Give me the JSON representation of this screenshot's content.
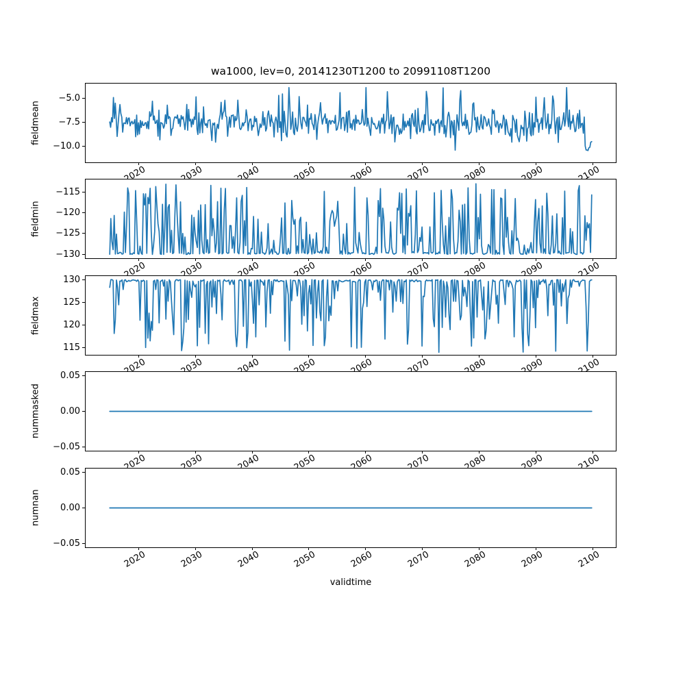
{
  "figure": {
    "title": "wa1000, lev=0, 20141230T1200 to 20991108T1200",
    "xlabel": "validtime",
    "line_color": "#1f77b4",
    "axes_color": "#000000",
    "background": "#ffffff"
  },
  "x_axis": {
    "label": "validtime",
    "xlim": [
      2010.75,
      2104.1
    ],
    "data_x_start": 2014.99,
    "data_x_end": 2099.85,
    "tick_values": [
      2020,
      2030,
      2040,
      2050,
      2060,
      2070,
      2080,
      2090,
      2100
    ],
    "tick_labels": [
      "2020",
      "2030",
      "2040",
      "2050",
      "2060",
      "2070",
      "2080",
      "2090",
      "2100"
    ],
    "tick_rotation_deg": 30
  },
  "chart_data": [
    {
      "type": "line",
      "name": "fieldmean",
      "ylabel": "fieldmean",
      "ylim": [
        -11.71,
        -3.43
      ],
      "yticks": [
        {
          "v": -5.0,
          "label": "−5.0"
        },
        {
          "v": -7.5,
          "label": "−7.5"
        },
        {
          "v": -10.0,
          "label": "−10.0"
        }
      ],
      "series_summary": {
        "description": "dense noisy oscillation",
        "approx_mean": -7.5,
        "typical_range": [
          -9.0,
          -6.3
        ],
        "max": -3.9,
        "min": -11.3,
        "end_value": -10.3
      },
      "synth": {
        "kind": "noisy",
        "seed": 42,
        "n": 520,
        "base": -7.55,
        "amp": 1.05,
        "spike_up_p": 0.085,
        "spike_up_min": 1.2,
        "spike_up_max": 3.3,
        "spike_dn_p": 0.07,
        "spike_dn_min": 0.5,
        "spike_dn_max": 1.8,
        "sag_from": 2083,
        "sag_to": 2090,
        "sag": 1.3,
        "tail_from": 2098.6,
        "tail_base": -10.0,
        "tail_amp": 0.5,
        "clamp_min": -11.3,
        "clamp_max": -3.85
      }
    },
    {
      "type": "line",
      "name": "fieldmin",
      "ylabel": "fieldmin",
      "ylim": [
        -130.92,
        -112.04
      ],
      "yticks": [
        {
          "v": -115,
          "label": "−115"
        },
        {
          "v": -120,
          "label": "−120"
        },
        {
          "v": -125,
          "label": "−125"
        },
        {
          "v": -130,
          "label": "−130"
        }
      ],
      "series_summary": {
        "description": "baseline hugging -130 with upward needle spikes",
        "baseline": -130.0,
        "spike_max": -113.0,
        "typical_spikes": [
          -128,
          -116
        ]
      },
      "synth": {
        "kind": "floor",
        "seed": 7,
        "n": 430,
        "floor": -130.0,
        "hug_p": 0.42,
        "hug_amp": 0.5,
        "spike_max": 17.0,
        "spike_pow": 1.9
      }
    },
    {
      "type": "line",
      "name": "fieldmax",
      "ylabel": "fieldmax",
      "ylim": [
        113.41,
        130.79
      ],
      "yticks": [
        {
          "v": 130,
          "label": "130"
        },
        {
          "v": 125,
          "label": "125"
        },
        {
          "v": 120,
          "label": "120"
        },
        {
          "v": 115,
          "label": "115"
        }
      ],
      "series_summary": {
        "description": "baseline hugging 130 with downward needle spikes",
        "baseline": 130.0,
        "spike_min": 114.0,
        "typical_spikes": [
          129,
          116
        ]
      },
      "synth": {
        "kind": "ceiling",
        "seed": 13,
        "n": 430,
        "ceiling": 130.0,
        "hug_p": 0.45,
        "hug_amp": 0.5,
        "spike_max": 16.1,
        "spike_pow": 2.2
      }
    },
    {
      "type": "line",
      "name": "nummasked",
      "ylabel": "nummasked",
      "ylim": [
        -0.055,
        0.055
      ],
      "yticks": [
        {
          "v": 0.05,
          "label": "0.05"
        },
        {
          "v": 0.0,
          "label": "0.00"
        },
        {
          "v": -0.05,
          "label": "−0.05"
        }
      ],
      "series_summary": {
        "description": "constant zero line",
        "constant": 0.0
      },
      "synth": {
        "kind": "constant",
        "seed": 1,
        "n": 2,
        "value": 0.0
      }
    },
    {
      "type": "line",
      "name": "numnan",
      "ylabel": "numnan",
      "ylim": [
        -0.055,
        0.055
      ],
      "yticks": [
        {
          "v": 0.05,
          "label": "0.05"
        },
        {
          "v": 0.0,
          "label": "0.00"
        },
        {
          "v": -0.05,
          "label": "−0.05"
        }
      ],
      "series_summary": {
        "description": "constant zero line",
        "constant": 0.0
      },
      "synth": {
        "kind": "constant",
        "seed": 2,
        "n": 2,
        "value": 0.0
      }
    }
  ]
}
